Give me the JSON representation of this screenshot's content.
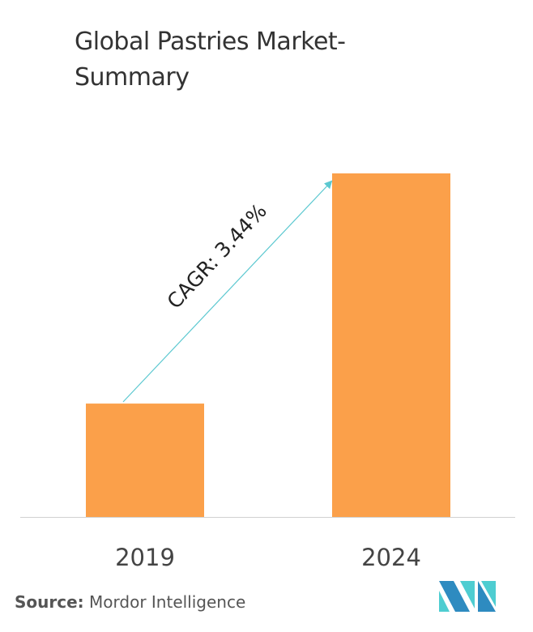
{
  "chart_data": {
    "type": "bar",
    "title_lines": [
      "Global Pastries Market-",
      "Summary"
    ],
    "categories": [
      "2019",
      "2024"
    ],
    "values": [
      33,
      100
    ],
    "ylim": [
      0,
      100
    ],
    "y_axis_shown": false,
    "grid": false,
    "xlabel": "",
    "ylabel": "",
    "bar_color": "#FBA04A",
    "annotation": {
      "text": "CAGR: 3.44%",
      "arrow_color": "#5BC8D0",
      "from": "2019",
      "to": "2024"
    }
  },
  "source": {
    "label": "Source:",
    "text": "Mordor Intelligence"
  },
  "logo": {
    "colors": [
      "#2E8BC0",
      "#4ECDD1"
    ]
  }
}
